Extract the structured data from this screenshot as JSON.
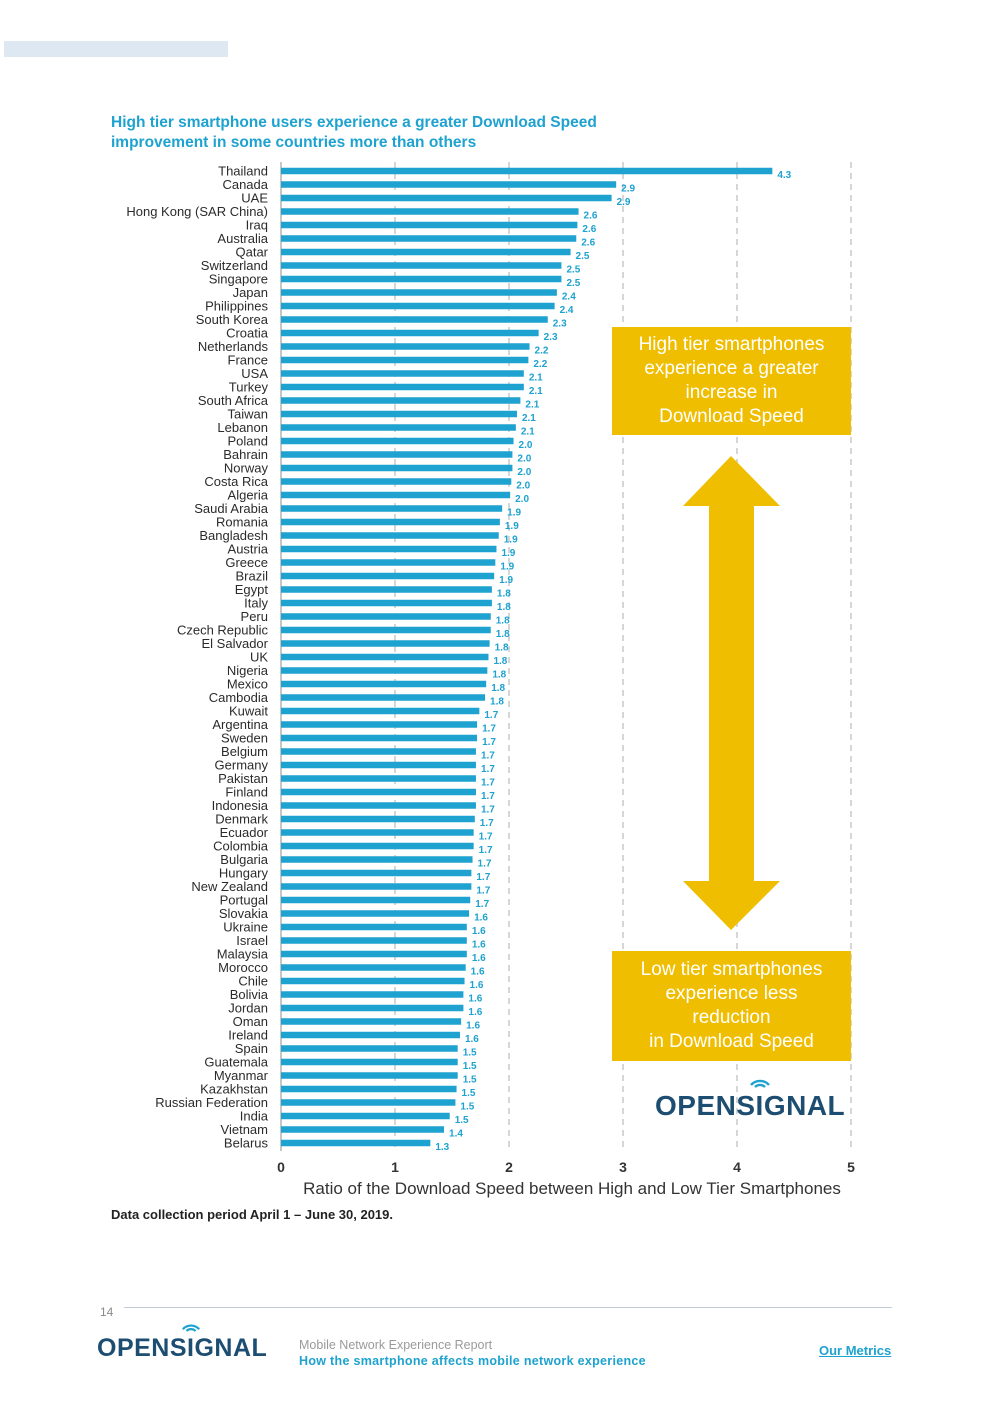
{
  "page": {
    "number": "14",
    "report_title": "Mobile Network Experience Report",
    "report_subtitle": "How the smartphone affects mobile network experience",
    "link_label": "Our Metrics"
  },
  "brand": {
    "logo_prefix": "OPENS",
    "logo_i": "I",
    "logo_suffix": "GNAL",
    "wifi_icon": "wifi-signal-icon"
  },
  "colors": {
    "bar": "#1ea2cf",
    "title": "#1ea2cf",
    "callout": "#f0be00",
    "brand": "#1d4e72",
    "grid": "#c8c8c8"
  },
  "callouts": {
    "high": [
      "High tier smartphones",
      "experience a greater",
      "increase in",
      "Download Speed"
    ],
    "low": [
      "Low tier smartphones",
      "experience less",
      "reduction",
      "in Download Speed"
    ]
  },
  "source_note": "Data collection period April 1 – June 30, 2019.",
  "chart_data": {
    "type": "bar",
    "orientation": "horizontal",
    "title": "High tier smartphone users experience a greater Download Speed improvement in some countries more than others",
    "xlabel": "Ratio of the Download Speed between High and Low Tier Smartphones",
    "ylabel": "",
    "xlim": [
      0,
      5
    ],
    "xticks": [
      "0",
      "1",
      "2",
      "3",
      "4",
      "5"
    ],
    "grid": "vertical dashed",
    "categories": [
      "Thailand",
      "Canada",
      "UAE",
      "Hong Kong (SAR China)",
      "Iraq",
      "Australia",
      "Qatar",
      "Switzerland",
      "Singapore",
      "Japan",
      "Philippines",
      "South Korea",
      "Croatia",
      "Netherlands",
      "France",
      "USA",
      "Turkey",
      "South Africa",
      "Taiwan",
      "Lebanon",
      "Poland",
      "Bahrain",
      "Norway",
      "Costa Rica",
      "Algeria",
      "Saudi Arabia",
      "Romania",
      "Bangladesh",
      "Austria",
      "Greece",
      "Brazil",
      "Egypt",
      "Italy",
      "Peru",
      "Czech Republic",
      "El Salvador",
      "UK",
      "Nigeria",
      "Mexico",
      "Cambodia",
      "Kuwait",
      "Argentina",
      "Sweden",
      "Belgium",
      "Germany",
      "Pakistan",
      "Finland",
      "Indonesia",
      "Denmark",
      "Ecuador",
      "Colombia",
      "Bulgaria",
      "Hungary",
      "New Zealand",
      "Portugal",
      "Slovakia",
      "Ukraine",
      "Israel",
      "Malaysia",
      "Morocco",
      "Chile",
      "Bolivia",
      "Jordan",
      "Oman",
      "Ireland",
      "Spain",
      "Guatemala",
      "Myanmar",
      "Kazakhstan",
      "Russian Federation",
      "India",
      "Vietnam",
      "Belarus"
    ],
    "values": [
      4.31,
      2.94,
      2.9,
      2.61,
      2.6,
      2.59,
      2.54,
      2.46,
      2.46,
      2.42,
      2.4,
      2.34,
      2.26,
      2.18,
      2.17,
      2.13,
      2.13,
      2.1,
      2.07,
      2.06,
      2.04,
      2.03,
      2.03,
      2.02,
      2.01,
      1.94,
      1.92,
      1.91,
      1.89,
      1.88,
      1.87,
      1.85,
      1.85,
      1.84,
      1.84,
      1.83,
      1.82,
      1.81,
      1.8,
      1.79,
      1.74,
      1.72,
      1.72,
      1.71,
      1.71,
      1.71,
      1.71,
      1.71,
      1.7,
      1.69,
      1.69,
      1.68,
      1.67,
      1.67,
      1.66,
      1.65,
      1.63,
      1.63,
      1.63,
      1.62,
      1.61,
      1.6,
      1.6,
      1.58,
      1.57,
      1.55,
      1.55,
      1.55,
      1.54,
      1.53,
      1.48,
      1.43,
      1.31
    ],
    "value_labels": [
      "4.3",
      "2.9",
      "2.9",
      "2.6",
      "2.6",
      "2.6",
      "2.5",
      "2.5",
      "2.5",
      "2.4",
      "2.4",
      "2.3",
      "2.3",
      "2.2",
      "2.2",
      "2.1",
      "2.1",
      "2.1",
      "2.1",
      "2.1",
      "2.0",
      "2.0",
      "2.0",
      "2.0",
      "2.0",
      "1.9",
      "1.9",
      "1.9",
      "1.9",
      "1.9",
      "1.9",
      "1.8",
      "1.8",
      "1.8",
      "1.8",
      "1.8",
      "1.8",
      "1.8",
      "1.8",
      "1.8",
      "1.7",
      "1.7",
      "1.7",
      "1.7",
      "1.7",
      "1.7",
      "1.7",
      "1.7",
      "1.7",
      "1.7",
      "1.7",
      "1.7",
      "1.7",
      "1.7",
      "1.7",
      "1.6",
      "1.6",
      "1.6",
      "1.6",
      "1.6",
      "1.6",
      "1.6",
      "1.6",
      "1.6",
      "1.6",
      "1.5",
      "1.5",
      "1.5",
      "1.5",
      "1.5",
      "1.5",
      "1.4",
      "1.3"
    ]
  }
}
